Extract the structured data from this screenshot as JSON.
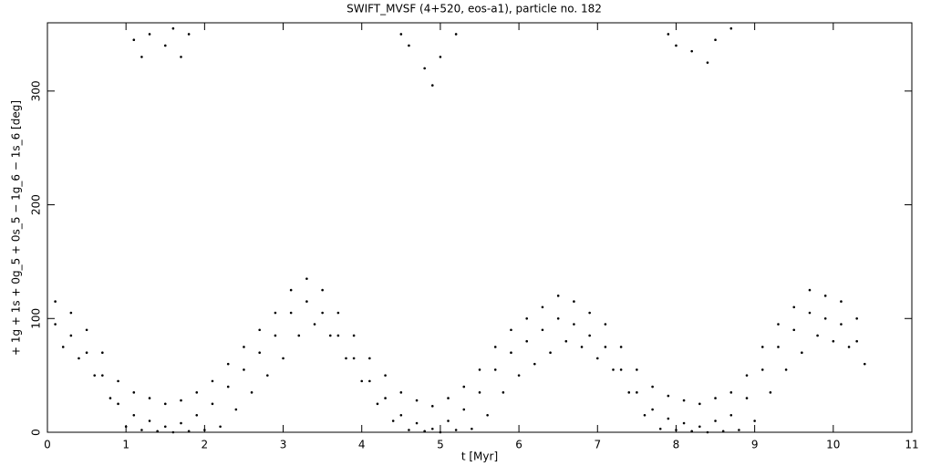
{
  "chart_data": {
    "type": "scatter",
    "title": "SWIFT_MVSF (4+520, eos-a1), particle no. 182",
    "xlabel": "t [Myr]",
    "ylabel": "+ 1g + 1s + 0g_5 + 0s_5 − 1g_6 − 1s_6 [deg]",
    "xlim": [
      0,
      11
    ],
    "ylim": [
      0,
      360
    ],
    "xticks": [
      0,
      1,
      2,
      3,
      4,
      5,
      6,
      7,
      8,
      9,
      10,
      11
    ],
    "yticks": [
      0,
      100,
      200,
      300
    ],
    "color": "#000000",
    "x": [
      0.1,
      0.3,
      0.5,
      0.7,
      0.9,
      1.1,
      1.3,
      1.5,
      1.7,
      1.9,
      2.1,
      2.3,
      2.5,
      2.7,
      2.9,
      3.1,
      3.3,
      3.5,
      3.7,
      3.9,
      4.1,
      4.3,
      4.5,
      4.7,
      4.9,
      5.1,
      5.3,
      5.5,
      5.7,
      5.9,
      6.1,
      6.3,
      6.5,
      6.7,
      6.9,
      7.1,
      7.3,
      7.5,
      7.7,
      7.9,
      8.1,
      8.3,
      8.5,
      8.7,
      8.9,
      9.1,
      9.3,
      9.5,
      9.7,
      9.9,
      10.1,
      10.3,
      0.1,
      0.3,
      0.5,
      0.7,
      0.9,
      1.1,
      1.3,
      1.5,
      1.7,
      1.9,
      2.1,
      2.3,
      2.5,
      2.7,
      2.9,
      3.1,
      3.3,
      3.5,
      3.7,
      3.9,
      4.1,
      4.3,
      4.5,
      4.7,
      4.9,
      5.1,
      5.3,
      5.5,
      5.7,
      5.9,
      6.1,
      6.3,
      6.5,
      6.7,
      6.9,
      7.1,
      7.3,
      7.5,
      7.7,
      7.9,
      8.1,
      8.3,
      8.5,
      8.7,
      8.9,
      9.1,
      9.3,
      9.5,
      9.7,
      9.9,
      10.1,
      10.3,
      0.2,
      0.4,
      0.6,
      0.8,
      1.0,
      1.2,
      1.4,
      1.6,
      1.8,
      2.0,
      2.2,
      2.4,
      2.6,
      2.8,
      3.0,
      3.2,
      3.4,
      3.6,
      3.8,
      4.0,
      4.2,
      4.4,
      4.6,
      4.8,
      5.0,
      5.2,
      5.4,
      5.6,
      5.8,
      6.0,
      6.2,
      6.4,
      6.6,
      6.8,
      7.0,
      7.2,
      7.4,
      7.6,
      7.8,
      8.0,
      8.2,
      8.4,
      8.6,
      8.8,
      9.0,
      9.2,
      9.4,
      9.6,
      9.8,
      10.0,
      10.2,
      10.4,
      1.1,
      1.2,
      1.3,
      1.5,
      1.6,
      1.7,
      1.8,
      4.5,
      4.6,
      4.8,
      4.9,
      5.0,
      5.2,
      7.9,
      8.0,
      8.2,
      8.4,
      8.5,
      8.7
    ],
    "y": [
      95,
      85,
      70,
      50,
      25,
      15,
      10,
      5,
      8,
      15,
      25,
      40,
      55,
      70,
      85,
      105,
      115,
      105,
      85,
      65,
      45,
      30,
      15,
      8,
      3,
      10,
      20,
      35,
      55,
      70,
      80,
      90,
      100,
      95,
      85,
      75,
      55,
      35,
      20,
      12,
      8,
      5,
      10,
      15,
      30,
      55,
      75,
      90,
      105,
      100,
      95,
      80,
      115,
      105,
      90,
      70,
      45,
      35,
      30,
      25,
      28,
      35,
      45,
      60,
      75,
      90,
      105,
      125,
      135,
      125,
      105,
      85,
      65,
      50,
      35,
      28,
      23,
      30,
      40,
      55,
      75,
      90,
      100,
      110,
      120,
      115,
      105,
      95,
      75,
      55,
      40,
      32,
      28,
      25,
      30,
      35,
      50,
      75,
      95,
      110,
      125,
      120,
      115,
      100,
      75,
      65,
      50,
      30,
      5,
      2,
      1,
      0,
      1,
      2,
      5,
      20,
      35,
      50,
      65,
      85,
      95,
      85,
      65,
      45,
      25,
      10,
      2,
      1,
      0,
      2,
      3,
      15,
      35,
      50,
      60,
      70,
      80,
      75,
      65,
      55,
      35,
      15,
      3,
      2,
      1,
      0,
      1,
      2,
      10,
      35,
      55,
      70,
      85,
      80,
      75,
      60,
      345,
      330,
      350,
      340,
      355,
      330,
      350,
      350,
      340,
      320,
      305,
      330,
      350,
      350,
      340,
      335,
      325,
      345,
      355
    ]
  }
}
